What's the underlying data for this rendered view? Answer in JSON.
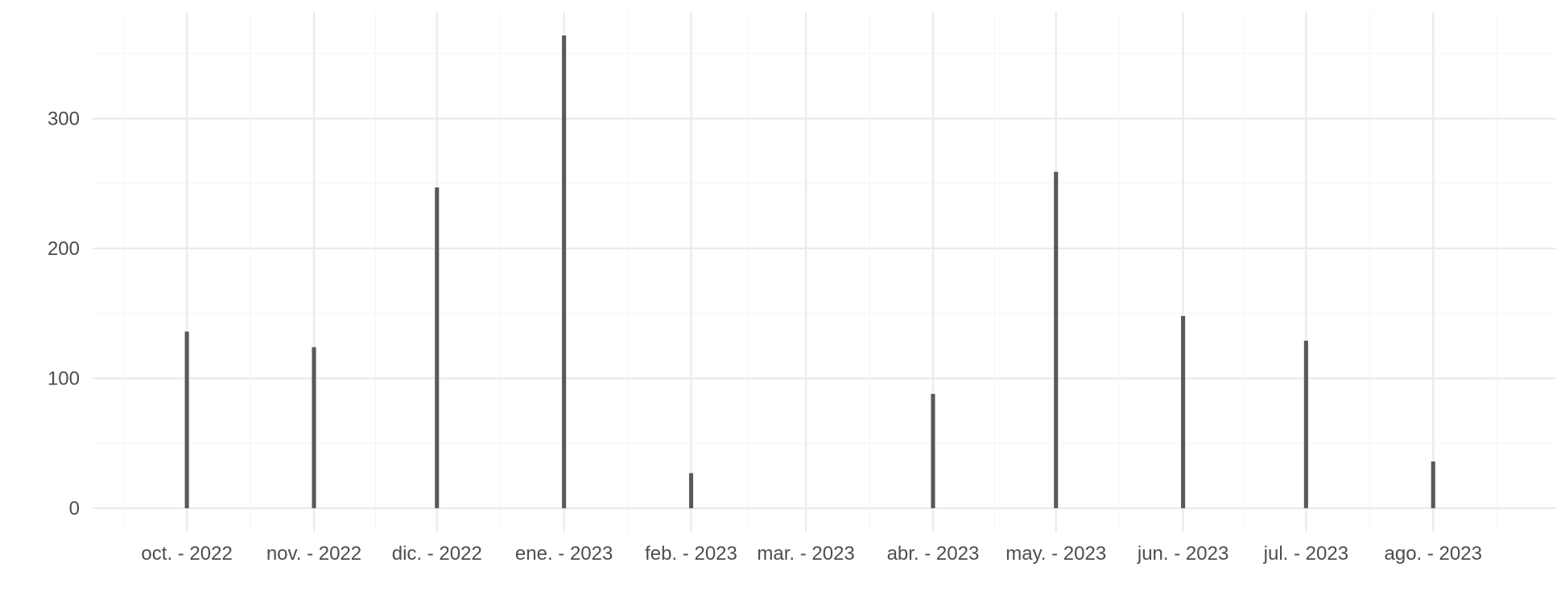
{
  "chart_data": {
    "type": "bar",
    "title": "",
    "xlabel": "",
    "ylabel": "",
    "categories": [
      "oct. - 2022",
      "nov. - 2022",
      "dic. - 2022",
      "ene. - 2023",
      "feb. - 2023",
      "mar. - 2023",
      "abr. - 2023",
      "may. - 2023",
      "jun. - 2023",
      "jul. - 2023",
      "ago. - 2023"
    ],
    "dates": [
      "2022-10-01",
      "2022-11-01",
      "2022-12-01",
      "2023-01-01",
      "2023-02-01",
      "2023-03-01",
      "2023-04-01",
      "2023-05-01",
      "2023-06-01",
      "2023-07-01",
      "2023-08-01"
    ],
    "values": [
      136,
      124,
      247,
      364,
      27,
      0,
      88,
      259,
      148,
      129,
      36
    ],
    "yticks": [
      0,
      100,
      200,
      300
    ],
    "ylim": [
      -18,
      382
    ],
    "xlim": [
      "2022-09-08",
      "2023-08-31"
    ],
    "grid": true,
    "legend": "none",
    "bar_color": "#595959",
    "grid_major_color": "#ebebeb",
    "grid_minor_color": "#f4f4f4",
    "tick_label_color": "#4d4d4d"
  }
}
